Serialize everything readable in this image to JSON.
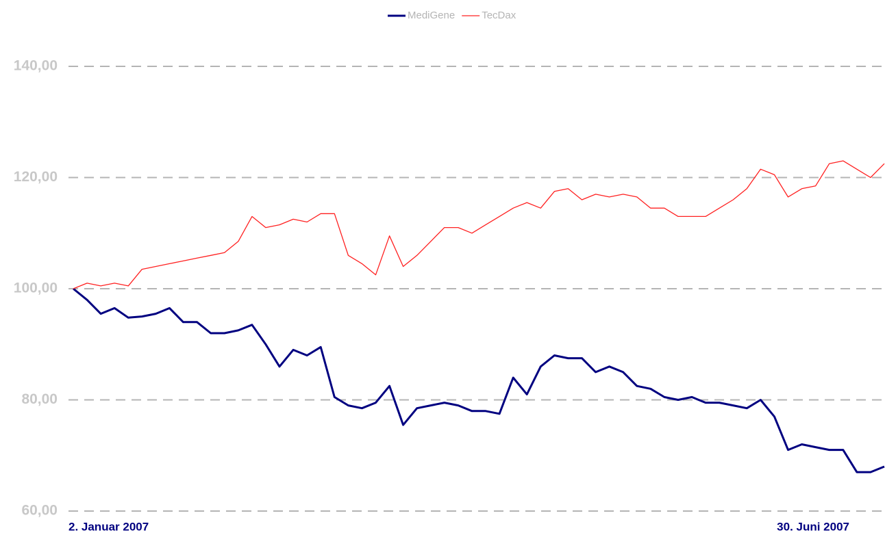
{
  "chart_data": {
    "type": "line",
    "categories": [
      "2. Januar 2007",
      null,
      null,
      null,
      null,
      null,
      null,
      null,
      null,
      null,
      null,
      null,
      null,
      null,
      null,
      null,
      null,
      null,
      null,
      null,
      null,
      null,
      null,
      null,
      null,
      null,
      null,
      null,
      null,
      null,
      null,
      null,
      null,
      null,
      null,
      null,
      null,
      null,
      null,
      null,
      null,
      null,
      null,
      null,
      null,
      null,
      null,
      null,
      null,
      null,
      null,
      null,
      null,
      null,
      null,
      null,
      null,
      null,
      null,
      "30. Juni 2007"
    ],
    "series": [
      {
        "name": "MediGene",
        "color": "#000080",
        "values": [
          100,
          98,
          95.5,
          96.5,
          94.8,
          95,
          95.5,
          96.5,
          94,
          94,
          92,
          92,
          92.5,
          93.5,
          90,
          86,
          89,
          88,
          89.5,
          80.5,
          79,
          78.5,
          79.5,
          82.5,
          75.5,
          78.5,
          79,
          79.5,
          79,
          78,
          78,
          77.5,
          84,
          81,
          86,
          88,
          87.5,
          87.5,
          85,
          86,
          85,
          82.5,
          82,
          80.5,
          80,
          80.5,
          79.5,
          79.5,
          79,
          78.5,
          80,
          77,
          71,
          72,
          71.5,
          71,
          71,
          67,
          67,
          68
        ]
      },
      {
        "name": "TecDax",
        "color": "#ff2020",
        "values": [
          100,
          101,
          100.5,
          101,
          100.5,
          103.5,
          104,
          104.5,
          105,
          105.5,
          106,
          106.5,
          108.5,
          113,
          111,
          111.5,
          112.5,
          112,
          113.5,
          113.5,
          106,
          104.5,
          102.5,
          109.5,
          104,
          106,
          108.5,
          111,
          111,
          110,
          111.5,
          113,
          114.5,
          115.5,
          114.5,
          117.5,
          118,
          116,
          117,
          116.5,
          117,
          116.5,
          114.5,
          114.5,
          113,
          113,
          113,
          114.5,
          116,
          118,
          121.5,
          120.5,
          116.5,
          118,
          118.5,
          122.5,
          123,
          121.5,
          120,
          122.5
        ]
      }
    ],
    "ylim": [
      60,
      140
    ],
    "yticks": [
      {
        "value": 60,
        "label": "60,00"
      },
      {
        "value": 80,
        "label": "80,00"
      },
      {
        "value": 100,
        "label": "100,00"
      },
      {
        "value": 120,
        "label": "120,00"
      },
      {
        "value": 140,
        "label": "140,00"
      }
    ],
    "grid": true,
    "legend": "top"
  }
}
